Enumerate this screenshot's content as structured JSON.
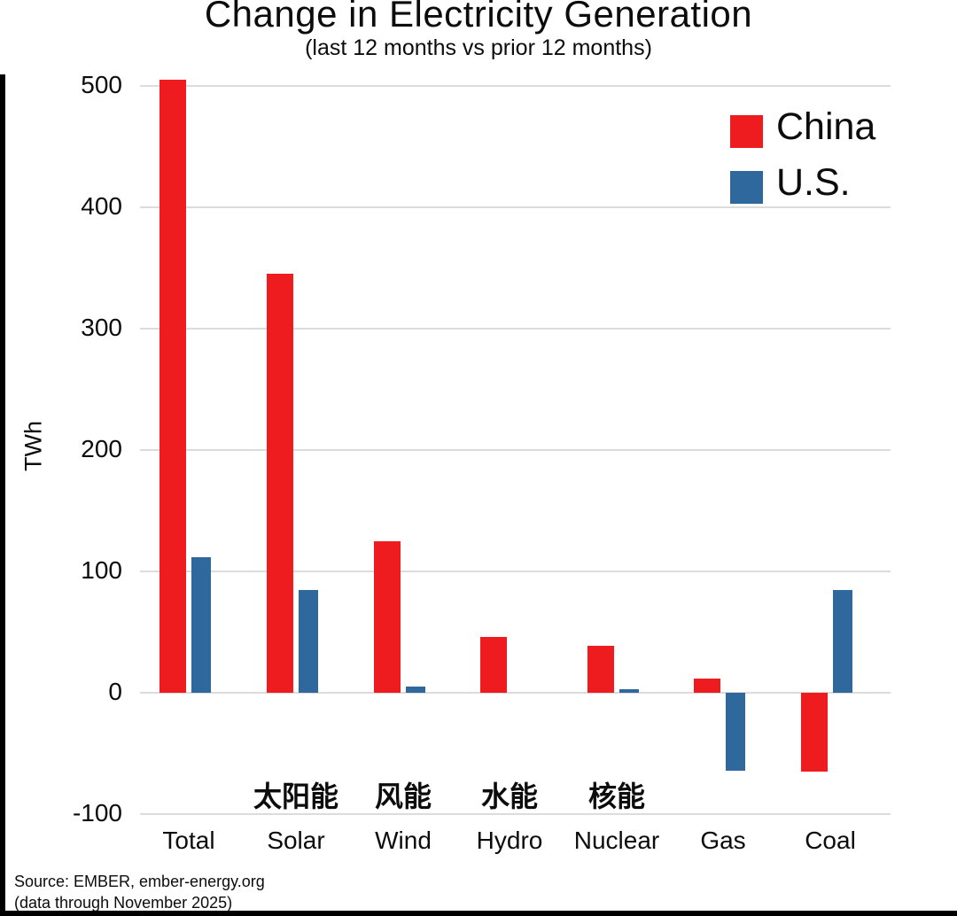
{
  "title": "Change in Electricity Generation",
  "subtitle": "(last 12 months vs prior 12 months)",
  "ylabel": "TWh",
  "legend": [
    {
      "label": "China",
      "color": "#ee1c1e"
    },
    {
      "label": "U.S.",
      "color": "#2e689d"
    }
  ],
  "source": {
    "line1": "Source: EMBER, ember-energy.org",
    "line2": "(data through November 2025)"
  },
  "chart_data": {
    "type": "bar",
    "categories": [
      "Total",
      "Solar",
      "Wind",
      "Hydro",
      "Nuclear",
      "Gas",
      "Coal"
    ],
    "series": [
      {
        "name": "China",
        "color": "#ee1c1e",
        "values": [
          505,
          345,
          125,
          46,
          39,
          12,
          -65
        ]
      },
      {
        "name": "U.S.",
        "color": "#2e689d",
        "values": [
          112,
          85,
          5,
          0,
          3,
          -64,
          85
        ]
      }
    ],
    "annotations_cn": [
      {
        "category": "Solar",
        "text": "太阳能"
      },
      {
        "category": "Wind",
        "text": "风能"
      },
      {
        "category": "Hydro",
        "text": "水能"
      },
      {
        "category": "Nuclear",
        "text": "核能"
      }
    ],
    "yticks": [
      500,
      400,
      300,
      200,
      100,
      0,
      -100
    ],
    "ylim": [
      -100,
      540
    ],
    "ylabel": "TWh",
    "grid": true,
    "legend_position": "top-right"
  }
}
